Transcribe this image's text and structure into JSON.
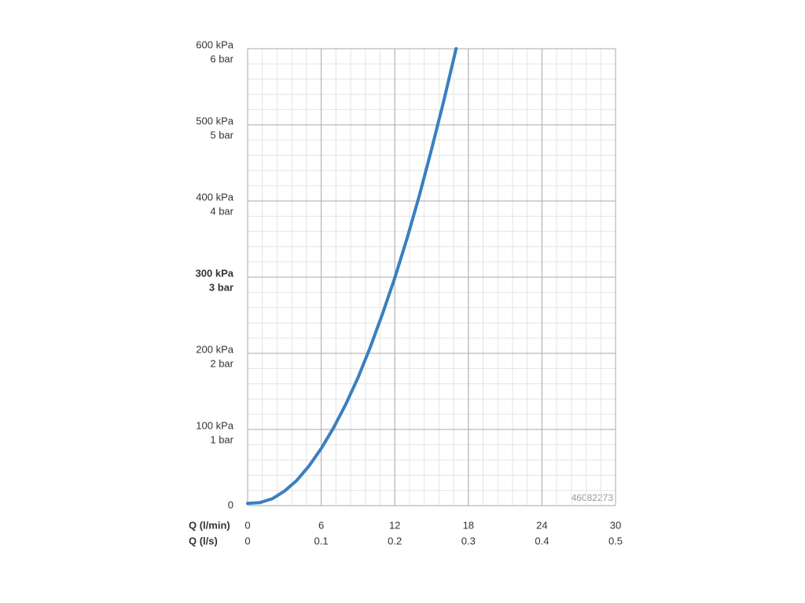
{
  "chart_data": {
    "type": "line",
    "xlabel": "Q (l/min)",
    "x2label": "Q (l/s)",
    "x": [
      0,
      1,
      2,
      3,
      4,
      5,
      6,
      7,
      8,
      9,
      10,
      11,
      12,
      13,
      14,
      15,
      16,
      17
    ],
    "series": [
      {
        "color": "#3a7fc0",
        "values": [
          3,
          4,
          9,
          19,
          33,
          52,
          75,
          102,
          133,
          168,
          208,
          252,
          299,
          351,
          407,
          468,
          532,
          600
        ]
      }
    ],
    "xlim": [
      0,
      30
    ],
    "xticks": [
      0,
      6,
      12,
      18,
      24,
      30
    ],
    "x2lim": [
      0,
      0.5
    ],
    "x2ticks": [
      0,
      0.1,
      0.2,
      0.3,
      0.4,
      0.5
    ],
    "ylim": [
      0,
      600
    ],
    "yticks": [
      0,
      {
        "value": 100,
        "label": "100 kPa",
        "label2": "1 bar"
      },
      {
        "value": 200,
        "label": "200 kPa",
        "label2": "2 bar"
      },
      {
        "value": 300,
        "label": "300 kPa",
        "label2": "3 bar",
        "bold": true
      },
      {
        "value": 400,
        "label": "400 kPa",
        "label2": "4 bar"
      },
      {
        "value": 500,
        "label": "500 kPa",
        "label2": "5 bar"
      },
      {
        "value": 600,
        "label": "600 kPa",
        "label2": "6 bar"
      }
    ],
    "grid": true,
    "minor_grid": {
      "x": 1.2,
      "y": 20
    },
    "annotation": "46082273"
  }
}
